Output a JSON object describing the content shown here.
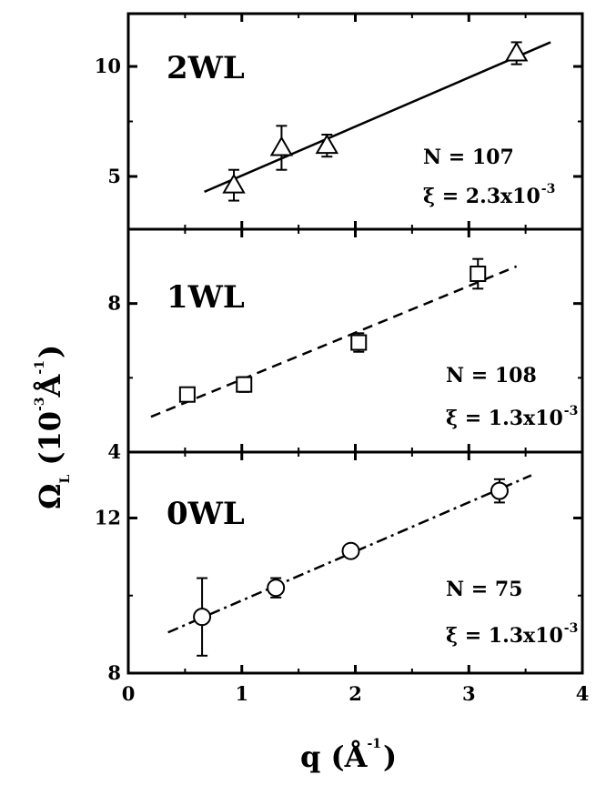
{
  "chart_data": {
    "type": "scatter",
    "shared_x_axis": {
      "label_main": "q (",
      "label_unit": "Å",
      "label_exp": "-1",
      "label_close": ")",
      "xlim": [
        0,
        4
      ],
      "ticks": [
        "0",
        "1",
        "2",
        "3",
        "4"
      ]
    },
    "shared_y_axis": {
      "label_main": "Ω",
      "label_sub": "L",
      "label_rest": "(10",
      "label_exp1": "-3",
      "label_unit": " Å",
      "label_exp2": "-1",
      "label_close": ")"
    },
    "panels": [
      {
        "label": "2WL",
        "marker": "triangle",
        "fit_style": "solid",
        "ylim": [
          2.6,
          12.4
        ],
        "yticks": [
          "5",
          "10"
        ],
        "stat_n": "N = 107",
        "stat_xi": "ξ = 2.3x10",
        "stat_xi_exp": "-3",
        "x": [
          0.93,
          1.35,
          1.75,
          3.42
        ],
        "y": [
          4.6,
          6.3,
          6.4,
          10.6
        ],
        "err": [
          0.7,
          1.0,
          0.5,
          0.5
        ],
        "fit": {
          "x": [
            0.67,
            3.72
          ],
          "y": [
            4.3,
            11.1
          ]
        }
      },
      {
        "label": "1WL",
        "marker": "square",
        "fit_style": "dashed",
        "ylim": [
          4,
          10
        ],
        "yticks": [
          "4",
          "8"
        ],
        "stat_n": "N = 108",
        "stat_xi": "ξ = 1.3x10",
        "stat_xi_exp": "-3",
        "x": [
          0.52,
          1.02,
          2.03,
          3.08
        ],
        "y": [
          5.55,
          5.82,
          6.95,
          8.8
        ],
        "err": [
          0.15,
          0.2,
          0.25,
          0.4
        ],
        "fit": {
          "x": [
            0.2,
            3.42
          ],
          "y": [
            4.95,
            9.0
          ]
        }
      },
      {
        "label": "0WL",
        "marker": "circle",
        "fit_style": "dashdot",
        "ylim": [
          8,
          13.7
        ],
        "yticks": [
          "8",
          "12"
        ],
        "stat_n": "N = 75",
        "stat_xi": "ξ = 1.3x10",
        "stat_xi_exp": "-3",
        "x": [
          0.65,
          1.3,
          1.96,
          3.27
        ],
        "y": [
          9.45,
          10.2,
          11.15,
          12.7
        ],
        "err": [
          1.0,
          0.25,
          0.15,
          0.3
        ],
        "fit": {
          "x": [
            0.35,
            3.55
          ],
          "y": [
            9.05,
            13.1
          ]
        }
      }
    ]
  }
}
